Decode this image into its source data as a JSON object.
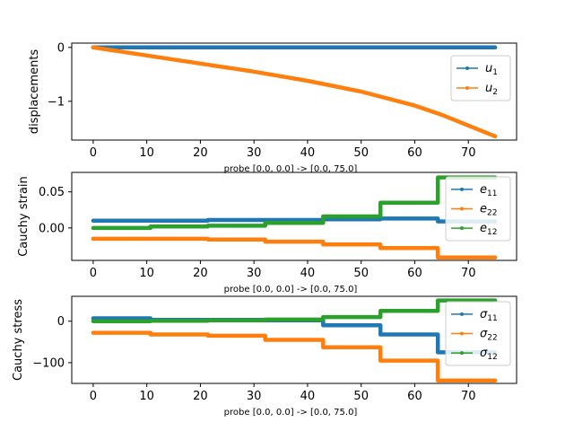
{
  "chart_data": [
    {
      "type": "line",
      "xlabel": "probe [0.0, 0.0] -> [0.0, 75.0]",
      "ylabel": "displacements",
      "xlim": [
        -4,
        79
      ],
      "ylim": [
        -1.72,
        0.08
      ],
      "xticks": [
        0,
        10,
        20,
        30,
        40,
        50,
        60,
        70
      ],
      "yticks": [
        0,
        -1
      ],
      "ytick_labels": [
        "0",
        "−1"
      ],
      "legend_position": "right",
      "series": [
        {
          "sym": "u",
          "sub": "1",
          "color": "#1f77b4",
          "x": [
            0,
            75
          ],
          "y": [
            0,
            0
          ]
        },
        {
          "sym": "u",
          "sub": "2",
          "color": "#ff7f0e",
          "x": [
            0,
            10,
            20,
            30,
            40,
            50,
            60,
            65,
            70,
            75
          ],
          "y": [
            0,
            -0.15,
            -0.3,
            -0.45,
            -0.62,
            -0.82,
            -1.08,
            -1.25,
            -1.45,
            -1.65
          ]
        }
      ]
    },
    {
      "type": "line",
      "xlabel": "probe [0.0, 0.0] -> [0.0, 75.0]",
      "ylabel": "Cauchy strain",
      "xlim": [
        -4,
        79
      ],
      "ylim": [
        -0.045,
        0.077
      ],
      "xticks": [
        0,
        10,
        20,
        30,
        40,
        50,
        60,
        70
      ],
      "yticks": [
        0.05,
        0.0
      ],
      "ytick_labels": [
        "0.05",
        "0.00"
      ],
      "legend_position": "right",
      "series": [
        {
          "sym": "e",
          "sub": "11",
          "color": "#1f77b4",
          "x": [
            0,
            10.7,
            10.7,
            21.4,
            21.4,
            32.1,
            32.1,
            42.9,
            42.9,
            53.6,
            53.6,
            64.3,
            64.3,
            75
          ],
          "y": [
            0.01,
            0.01,
            0.01,
            0.01,
            0.011,
            0.011,
            0.011,
            0.011,
            0.012,
            0.012,
            0.013,
            0.013,
            0.009,
            0.009
          ]
        },
        {
          "sym": "e",
          "sub": "22",
          "color": "#ff7f0e",
          "x": [
            0,
            10.7,
            10.7,
            21.4,
            21.4,
            32.1,
            32.1,
            42.9,
            42.9,
            53.6,
            53.6,
            64.3,
            64.3,
            75
          ],
          "y": [
            -0.015,
            -0.015,
            -0.015,
            -0.015,
            -0.016,
            -0.016,
            -0.019,
            -0.019,
            -0.023,
            -0.023,
            -0.028,
            -0.028,
            -0.041,
            -0.041
          ]
        },
        {
          "sym": "e",
          "sub": "12",
          "color": "#2ca02c",
          "x": [
            0,
            10.7,
            10.7,
            21.4,
            21.4,
            32.1,
            32.1,
            42.9,
            42.9,
            53.6,
            53.6,
            64.3,
            64.3,
            75
          ],
          "y": [
            0.0,
            0.0,
            0.002,
            0.002,
            0.003,
            0.003,
            0.007,
            0.007,
            0.016,
            0.016,
            0.035,
            0.035,
            0.07,
            0.07
          ]
        }
      ]
    },
    {
      "type": "line",
      "xlabel": "probe [0.0, 0.0] -> [0.0, 75.0]",
      "ylabel": "Cauchy stress",
      "xlim": [
        -4,
        79
      ],
      "ylim": [
        -150,
        60
      ],
      "xticks": [
        0,
        10,
        20,
        30,
        40,
        50,
        60,
        70
      ],
      "yticks": [
        0,
        -100
      ],
      "ytick_labels": [
        "0",
        "−100"
      ],
      "legend_position": "right",
      "series": [
        {
          "sym": "σ",
          "sub": "11",
          "color": "#1f77b4",
          "x": [
            0,
            10.7,
            10.7,
            21.4,
            21.4,
            32.1,
            32.1,
            42.9,
            42.9,
            53.6,
            53.6,
            64.3,
            64.3,
            75
          ],
          "y": [
            7,
            7,
            3,
            3,
            3,
            3,
            2,
            2,
            -10,
            -10,
            -32,
            -32,
            -75,
            -75
          ]
        },
        {
          "sym": "σ",
          "sub": "22",
          "color": "#ff7f0e",
          "x": [
            0,
            10.7,
            10.7,
            21.4,
            21.4,
            32.1,
            32.1,
            42.9,
            42.9,
            53.6,
            53.6,
            64.3,
            64.3,
            75
          ],
          "y": [
            -28,
            -28,
            -32,
            -32,
            -35,
            -35,
            -45,
            -45,
            -63,
            -63,
            -95,
            -95,
            -143,
            -143
          ]
        },
        {
          "sym": "σ",
          "sub": "12",
          "color": "#2ca02c",
          "x": [
            0,
            10.7,
            10.7,
            21.4,
            21.4,
            32.1,
            32.1,
            42.9,
            42.9,
            53.6,
            53.6,
            64.3,
            64.3,
            75
          ],
          "y": [
            0,
            0,
            1,
            1,
            2,
            2,
            4,
            4,
            10,
            10,
            25,
            25,
            50,
            50
          ]
        }
      ]
    }
  ]
}
